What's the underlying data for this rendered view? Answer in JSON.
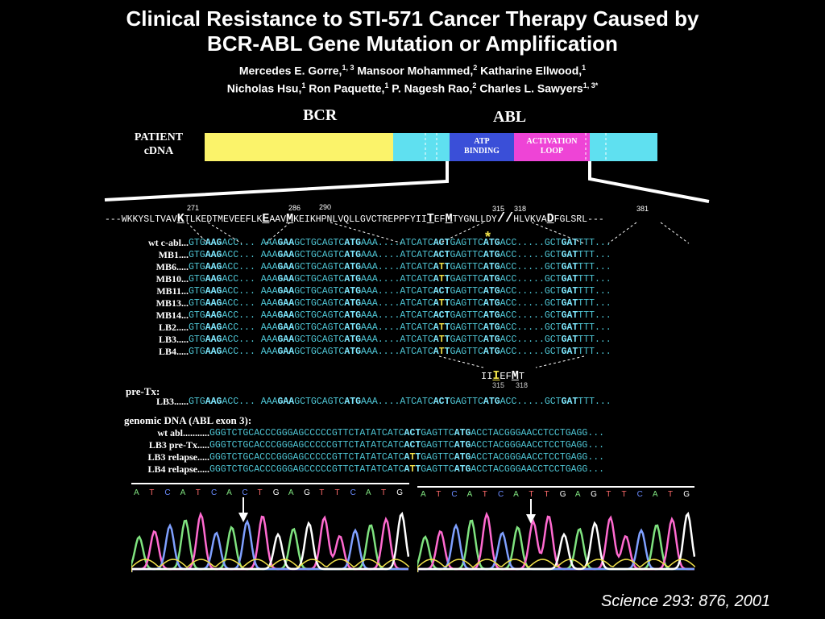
{
  "title_line1": "Clinical Resistance to STI-571 Cancer Therapy Caused by",
  "title_line2": "BCR-ABL Gene Mutation or Amplification",
  "authors_line1": [
    {
      "name": "Mercedes E. Gorre,",
      "sup": "1, 3"
    },
    {
      "name": " Mansoor Mohammed,",
      "sup": "2"
    },
    {
      "name": " Katharine Ellwood,",
      "sup": "1"
    }
  ],
  "authors_line2": [
    {
      "name": "Nicholas Hsu,",
      "sup": "1"
    },
    {
      "name": " Ron Paquette,",
      "sup": "1"
    },
    {
      "name": "  P. Nagesh Rao,",
      "sup": "2"
    },
    {
      "name": " Charles L. Sawyers",
      "sup": "1, 3*"
    }
  ],
  "diagram": {
    "bcr_label": "BCR",
    "abl_label": "ABL",
    "patient_label_line1": "PATIENT",
    "patient_label_line2": "cDNA",
    "atp_line1": "ATP",
    "atp_line2": "BINDING",
    "activation_line1": "ACTIVATION",
    "activation_line2": "LOOP",
    "colors": {
      "bcr": "#fbf36a",
      "abl": "#5fe0f0",
      "atp": "#3a4fd8",
      "activation": "#ee44d6"
    }
  },
  "protein": {
    "sequence_left": "---WKKYSLTVAV",
    "k271": "K",
    "sequence_mid1": "TLKEDTMEVEEFLK",
    "e286": "E",
    "sequence_mid2": "AAV",
    "m290": "M",
    "sequence_mid3": "KEIKHPNLVQLLGVCTREPPFYII",
    "t315": "T",
    "sequence_mid4": "EF",
    "m318": "M",
    "sequence_mid5": "TYGNLLDY",
    "break": "//",
    "sequence_mid6": "HLVKVA",
    "d381": "D",
    "sequence_right": "FGLSRL---",
    "num271": "271",
    "num286": "286",
    "num290": "290",
    "num315": "315",
    "num318": "318",
    "num381": "381",
    "asterisk": "*"
  },
  "rows": [
    {
      "label": "wt c-abl...",
      "mut": false
    },
    {
      "label": "MB1....",
      "mut": false
    },
    {
      "label": "MB6.....",
      "mut": true
    },
    {
      "label": "MB10...",
      "mut": true
    },
    {
      "label": "MB11...",
      "mut": false
    },
    {
      "label": "MB13...",
      "mut": true
    },
    {
      "label": "MB14...",
      "mut": false
    },
    {
      "label": "LB2.....",
      "mut": true
    },
    {
      "label": "LB3.....",
      "mut": true
    },
    {
      "label": "LB4.....",
      "mut": true
    }
  ],
  "seq": {
    "a1": "GTG",
    "b1": "AAG",
    "c1": "ACC...",
    "a2": "AAA",
    "b2": "GAA",
    "c2": "GCTGCAGTC",
    "b3": "ATG",
    "c3": "AAA...",
    "a4": ".ATCATC",
    "wt4": "ACT",
    "mut4": "ATT",
    "c4": "GAGTTC",
    "b5": "ATG",
    "c5": "ACC.....",
    "a6": "GCT",
    "b6": "GAT",
    "c6": "TTT..."
  },
  "mutant_protein": {
    "left": "II",
    "t315i": "I",
    "mid": "EF",
    "m318": "M",
    "right": "T",
    "num315": "315",
    "num318": "318"
  },
  "pretx": {
    "label": "pre-Tx:",
    "row_label": "LB3......"
  },
  "genomic": {
    "label": "genomic DNA (ABL exon 3):",
    "pre": "GGGTCTGCACCCGGGAGCCCCCGTTCTATATCATC",
    "post": "GAGTTC",
    "atg": "ATG",
    "tail": "ACCTACGGGAACCTCCTGAGG...",
    "rows": [
      {
        "label": "wt abl...........",
        "codon": "ACT",
        "mut": false
      },
      {
        "label": "LB3 pre-Tx.....",
        "codon": "ACT",
        "mut": false
      },
      {
        "label": "LB3 relapse.....",
        "codon": "ATT",
        "mut": true
      },
      {
        "label": "LB4 relapse.....",
        "codon": "ATT",
        "mut": true
      }
    ]
  },
  "chromatogram": {
    "left_bases": [
      "A",
      "T",
      "C",
      "A",
      "T",
      "C",
      "A",
      "C",
      "T",
      "G",
      "A",
      "G",
      "T",
      "T",
      "C",
      "A",
      "T",
      "G"
    ],
    "right_bases": [
      "A",
      "T",
      "C",
      "A",
      "T",
      "C",
      "A",
      "T",
      "T",
      "G",
      "A",
      "G",
      "T",
      "T",
      "C",
      "A",
      "T",
      "G"
    ],
    "base_colors": {
      "A": "#7fe37f",
      "T": "#ff6a6a",
      "C": "#6a8bff",
      "G": "#ffffff"
    }
  },
  "citation": "Science 293: 876, 2001"
}
